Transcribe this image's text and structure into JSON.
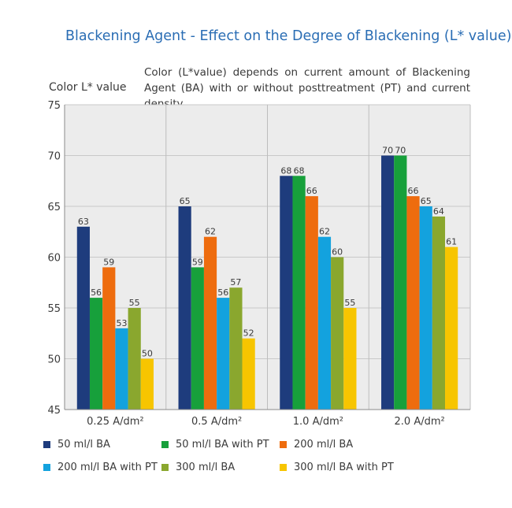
{
  "title": "Blackening Agent - Effect on the Degree of Blackening (L* value)",
  "subtitle": "Color (L*value) depends on current amount of Blackening Agent (BA) with or without posttreatment (PT) and current density",
  "chart_data": {
    "type": "bar",
    "ylabel": "Color L* value",
    "ylim": [
      45,
      75
    ],
    "yticks": [
      45,
      50,
      55,
      60,
      65,
      70,
      75
    ],
    "grid": true,
    "legend_position": "bottom",
    "categories": [
      "0.25 A/dm²",
      "0.5 A/dm²",
      "1.0 A/dm²",
      "2.0 A/dm²"
    ],
    "series": [
      {
        "name": "50 ml/l BA",
        "color": "#1e3c7d",
        "values": [
          63,
          65,
          68,
          70
        ]
      },
      {
        "name": "50 ml/l BA with PT",
        "color": "#17a03b",
        "values": [
          56,
          59,
          68,
          70
        ]
      },
      {
        "name": "200 ml/l BA",
        "color": "#ee6c0e",
        "values": [
          59,
          62,
          66,
          66
        ]
      },
      {
        "name": "200 ml/l BA with PT",
        "color": "#13a2de",
        "values": [
          53,
          56,
          62,
          65
        ]
      },
      {
        "name": "300 ml/l BA",
        "color": "#8aa72e",
        "values": [
          55,
          57,
          60,
          64
        ]
      },
      {
        "name": "300 ml/l BA with PT",
        "color": "#f7c500",
        "values": [
          50,
          52,
          55,
          61
        ]
      }
    ]
  }
}
